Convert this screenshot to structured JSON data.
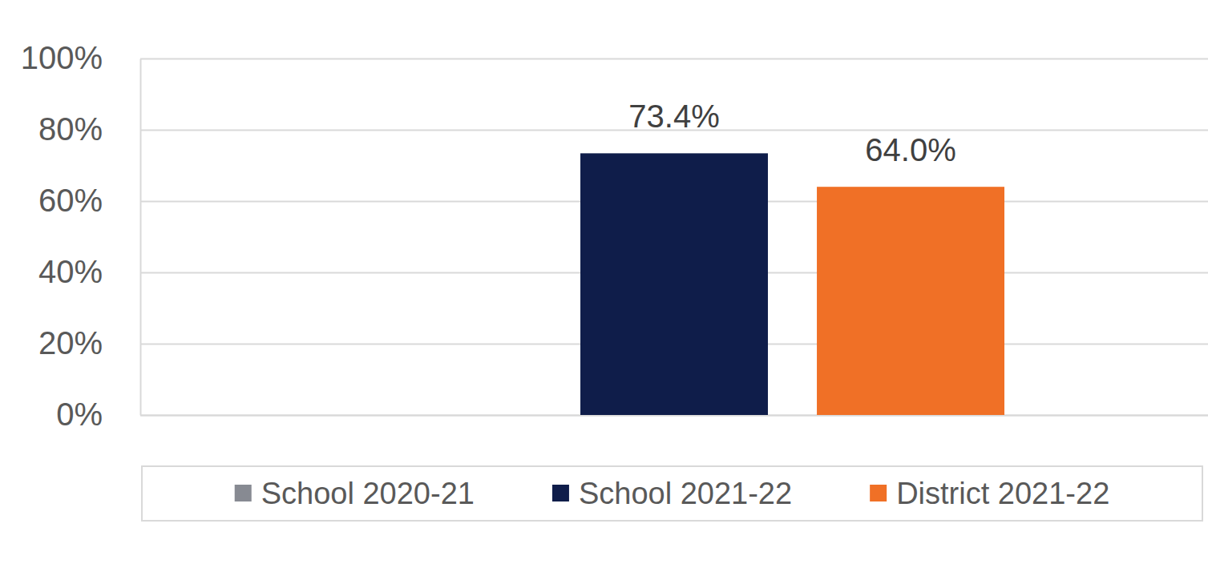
{
  "chart_data": {
    "type": "bar",
    "categories": [
      null
    ],
    "series": [
      {
        "name": "School 2020-21",
        "color": "#878a92",
        "values": [
          null
        ]
      },
      {
        "name": "School 2021-22",
        "color": "#0f1d4a",
        "values": [
          73.4
        ],
        "value_labels": [
          "73.4%"
        ]
      },
      {
        "name": "District 2021-22",
        "color": "#f07026",
        "values": [
          64
        ],
        "value_labels": [
          "64.0%"
        ]
      }
    ],
    "ylim": [
      0,
      100
    ],
    "yticks": [
      {
        "value": 0,
        "label": "0%"
      },
      {
        "value": 20,
        "label": "20%"
      },
      {
        "value": 40,
        "label": "40%"
      },
      {
        "value": 60,
        "label": "60%"
      },
      {
        "value": 80,
        "label": "80%"
      },
      {
        "value": 100,
        "label": "100%"
      }
    ],
    "grid": true,
    "legend": "bottom",
    "data_labels": true,
    "tick_labels": "y"
  }
}
